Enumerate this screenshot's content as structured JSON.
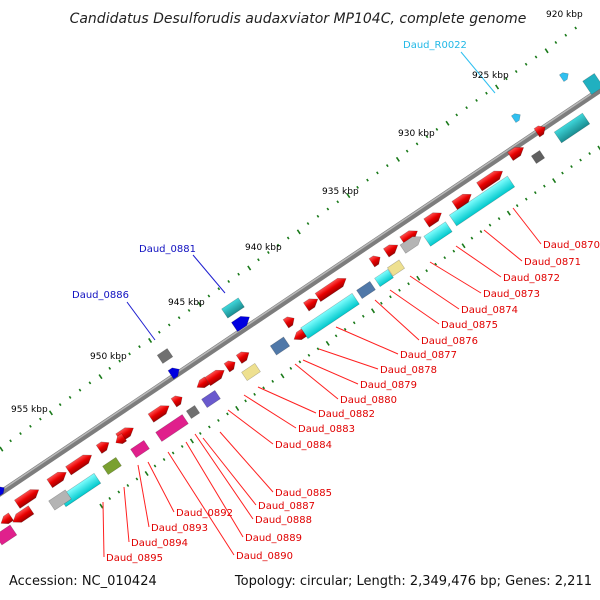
{
  "header": {
    "title": "Candidatus Desulforudis audaxviator MP104C, complete genome"
  },
  "footer": {
    "accession": "Accession: NC_010424",
    "topology": "Topology: circular; Length: 2,349,476 bp; Genes: 2,211"
  },
  "kbp_labels": [
    "920 kbp",
    "925 kbp",
    "930 kbp",
    "935 kbp",
    "940 kbp",
    "945 kbp",
    "950 kbp",
    "955 kbp"
  ],
  "gene_labels": {
    "red": [
      "Daud_0870",
      "Daud_0871",
      "Daud_0872",
      "Daud_0873",
      "Daud_0874",
      "Daud_0875",
      "Daud_0876",
      "Daud_0877",
      "Daud_0878",
      "Daud_0879",
      "Daud_0880",
      "Daud_0882",
      "Daud_0883",
      "Daud_0884",
      "Daud_0885",
      "Daud_0887",
      "Daud_0888",
      "Daud_0889",
      "Daud_0890",
      "Daud_0892",
      "Daud_0893",
      "Daud_0894",
      "Daud_0895"
    ],
    "blue": [
      "Daud_0881",
      "Daud_0886"
    ],
    "cyan": [
      "Daud_R0022"
    ]
  },
  "colors": {
    "backbone": "#7d7d7d",
    "gene_red": "#e80000",
    "gene_cyan": "#00e6ea",
    "gene_teal": "#24b0b4",
    "gene_gray": "#b4b4b4",
    "gene_blue": "#0000e0",
    "gene_khaki": "#eee090",
    "gene_slate": "#5078a8",
    "gene_magenta": "#e0208c",
    "gene_olive": "#7aa030",
    "tick_green": "#1a7a1a"
  }
}
